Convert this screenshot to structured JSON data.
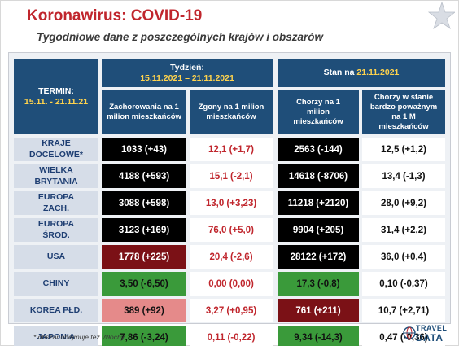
{
  "title": "Koronawirus: COVID-19",
  "subtitle": "Tygodniowe dane z poszczególnych krajów i obszarów",
  "colors": {
    "navy": "#1f4e79",
    "title_red": "#c0262d",
    "yellow": "#ffd34d",
    "black": "#000000",
    "dark_red": "#7b1116",
    "green": "#3a9a3a",
    "pink": "#e58a8a",
    "white": "#ffffff"
  },
  "header": {
    "termin_label": "TERMIN:",
    "termin_range": "15.11. - 21.11.21",
    "week_label": "Tydzień:",
    "week_range": "15.11.2021 – 21.11.2021",
    "stan_label": "Stan na ",
    "stan_date": "21.11.2021",
    "col1": "Zachorowania na 1 milion mieszkańców",
    "col2": "Zgony na 1 milion mieszkańców",
    "col3": "Chorzy na 1 milion mieszkańców",
    "col4": "Chorzy w stanie bardzo poważnym na 1 M mieszkańców"
  },
  "rows": [
    {
      "label": "KRAJE DOCELOWE*",
      "c1": "1033 (+43)",
      "c2": "12,1 (+1,7)",
      "c3": "2563 (-144)",
      "c4": "12,5 (+1,2)",
      "c1_bg": "#000000",
      "c1_fg": "#ffffff",
      "c2_bg": "#ffffff",
      "c2_fg": "#c0262d",
      "c3_bg": "#000000",
      "c3_fg": "#ffffff",
      "c4_bg": "#ffffff",
      "c4_fg": "#111111"
    },
    {
      "label": "WIELKA BRYTANIA",
      "c1": "4188 (+593)",
      "c2": "15,1 (-2,1)",
      "c3": "14618 (-8706)",
      "c4": "13,4 (-1,3)",
      "c1_bg": "#000000",
      "c1_fg": "#ffffff",
      "c2_bg": "#ffffff",
      "c2_fg": "#c0262d",
      "c3_bg": "#000000",
      "c3_fg": "#ffffff",
      "c4_bg": "#ffffff",
      "c4_fg": "#111111"
    },
    {
      "label": "EUROPA ZACH.",
      "c1": "3088 (+598)",
      "c2": "13,0 (+3,23)",
      "c3": "11218 (+2120)",
      "c4": "28,0 (+9,2)",
      "c1_bg": "#000000",
      "c1_fg": "#ffffff",
      "c2_bg": "#ffffff",
      "c2_fg": "#c0262d",
      "c3_bg": "#000000",
      "c3_fg": "#ffffff",
      "c4_bg": "#ffffff",
      "c4_fg": "#111111"
    },
    {
      "label": "EUROPA ŚROD.",
      "c1": "3123 (+169)",
      "c2": "76,0 (+5,0)",
      "c3": "9904 (+205)",
      "c4": "31,4 (+2,2)",
      "c1_bg": "#000000",
      "c1_fg": "#ffffff",
      "c2_bg": "#ffffff",
      "c2_fg": "#c0262d",
      "c3_bg": "#000000",
      "c3_fg": "#ffffff",
      "c4_bg": "#ffffff",
      "c4_fg": "#111111"
    },
    {
      "label": "USA",
      "c1": "1778 (+225)",
      "c2": "20,4 (-2,6)",
      "c3": "28122 (+172)",
      "c4": "36,0 (+0,4)",
      "c1_bg": "#7b1116",
      "c1_fg": "#ffffff",
      "c2_bg": "#ffffff",
      "c2_fg": "#c0262d",
      "c3_bg": "#000000",
      "c3_fg": "#ffffff",
      "c4_bg": "#ffffff",
      "c4_fg": "#111111"
    },
    {
      "label": "CHINY",
      "c1": "3,50 (-6,50)",
      "c2": "0,00 (0,00)",
      "c3": "17,3 (-0,8)",
      "c4": "0,10 (-0,37)",
      "c1_bg": "#3a9a3a",
      "c1_fg": "#111111",
      "c2_bg": "#ffffff",
      "c2_fg": "#c0262d",
      "c3_bg": "#3a9a3a",
      "c3_fg": "#111111",
      "c4_bg": "#ffffff",
      "c4_fg": "#111111"
    },
    {
      "label": "KOREA PŁD.",
      "c1": "389 (+92)",
      "c2": "3,27 (+0,95)",
      "c3": "761 (+211)",
      "c4": "10,7 (+2,71)",
      "c1_bg": "#e58a8a",
      "c1_fg": "#111111",
      "c2_bg": "#ffffff",
      "c2_fg": "#c0262d",
      "c3_bg": "#7b1116",
      "c3_fg": "#ffffff",
      "c4_bg": "#ffffff",
      "c4_fg": "#111111"
    },
    {
      "label": "JAPONIA",
      "c1": "7,86 (-3,24)",
      "c2": "0,11 (-0,22)",
      "c3": "9,34 (-14,3)",
      "c4": "0,47 (-0,36)",
      "c1_bg": "#3a9a3a",
      "c1_fg": "#111111",
      "c2_bg": "#ffffff",
      "c2_fg": "#c0262d",
      "c3_bg": "#3a9a3a",
      "c3_fg": "#111111",
      "c4_bg": "#ffffff",
      "c4_fg": "#111111"
    }
  ],
  "footnote": "* obszar obejmuje też Włochy",
  "logo": {
    "line1": "TRAVEL",
    "line2": "DATA",
    "icon": "globe-icon"
  },
  "corner_icon": "star-icon"
}
